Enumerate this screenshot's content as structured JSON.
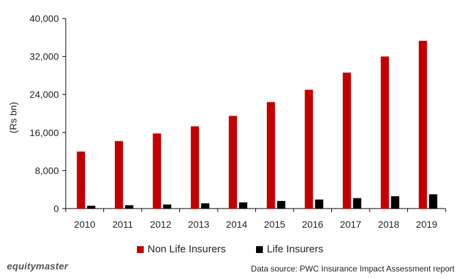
{
  "chart_data": {
    "type": "bar",
    "categories": [
      "2010",
      "2011",
      "2012",
      "2013",
      "2014",
      "2015",
      "2016",
      "2017",
      "2018",
      "2019"
    ],
    "series": [
      {
        "name": "Non Life Insurers",
        "color": "#c00000",
        "values": [
          12000,
          14200,
          15800,
          17300,
          19500,
          22400,
          25000,
          28600,
          32000,
          35300
        ]
      },
      {
        "name": "Life Insurers",
        "color": "#000000",
        "values": [
          600,
          700,
          850,
          1100,
          1300,
          1600,
          1900,
          2200,
          2600,
          3000
        ]
      }
    ],
    "ylabel": "(Rs bn)",
    "xlabel": "",
    "ylim": [
      0,
      40000
    ],
    "yticks": [
      "0",
      "8,000",
      "16,000",
      "24,000",
      "32,000",
      "40,000"
    ],
    "ytick_values": [
      0,
      8000,
      16000,
      24000,
      32000,
      40000
    ],
    "grid": false,
    "legend_position": "bottom"
  },
  "footer": {
    "brand": "equitymaster",
    "source": "Data source: PWC Insurance Impact Assessment report"
  }
}
